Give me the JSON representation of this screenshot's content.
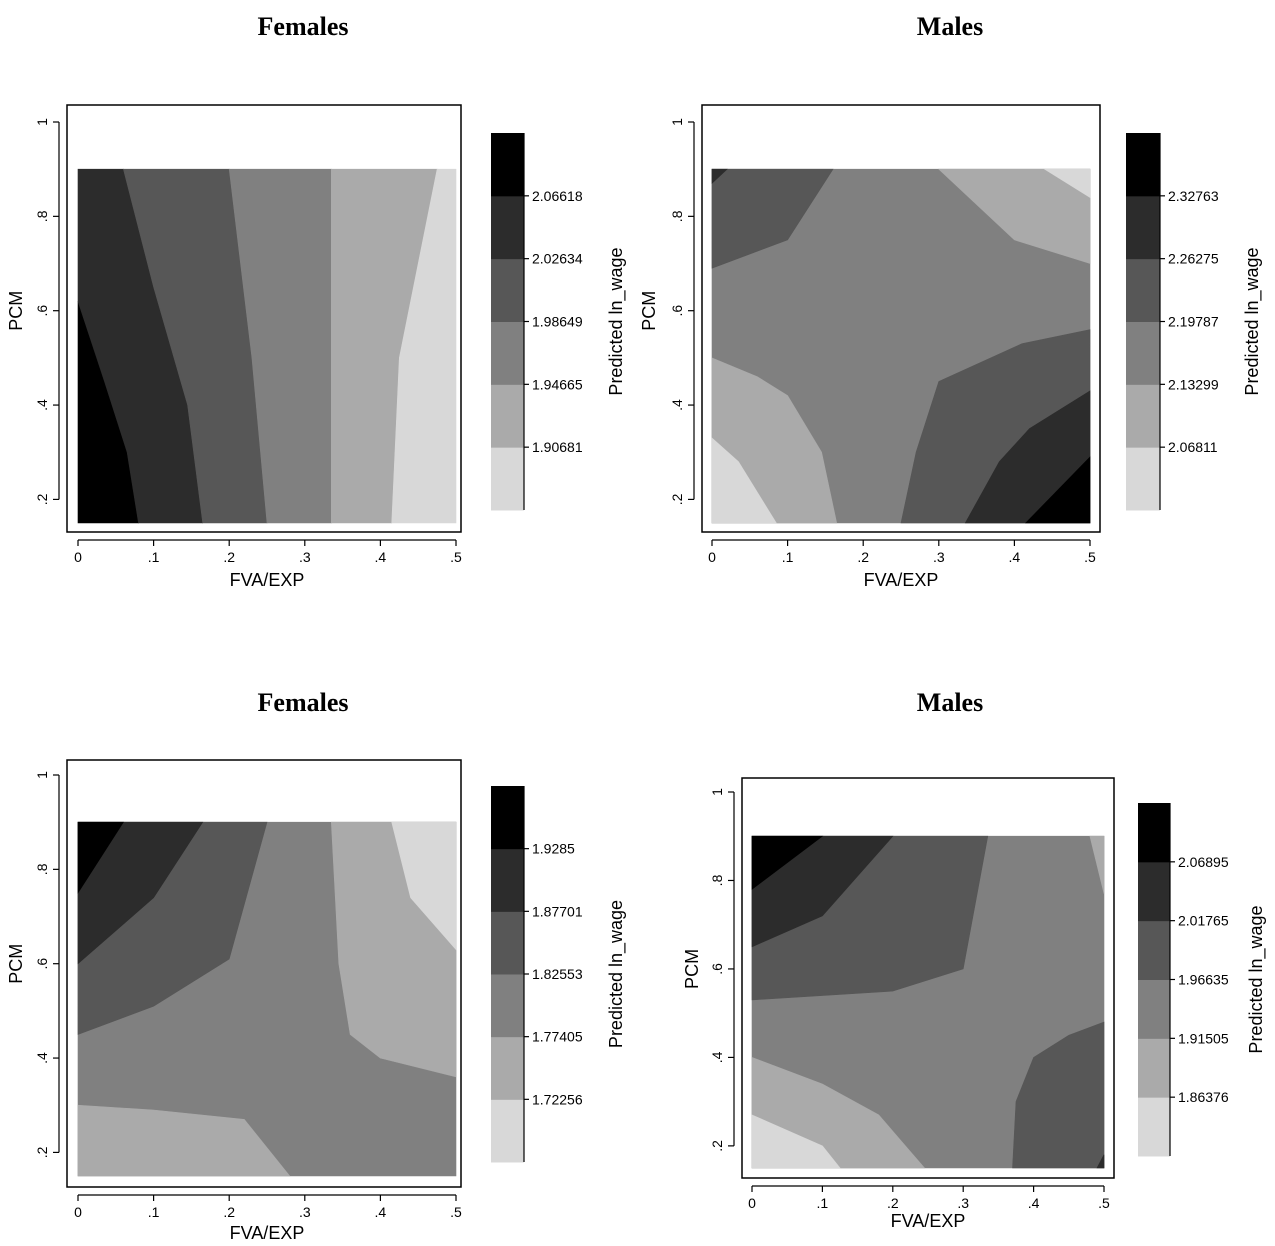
{
  "chart_data": [
    {
      "type": "contour",
      "title": "Females",
      "xlabel": "FVA/EXP",
      "ylabel": "PCM",
      "colorbar_label": "Predicted ln_wage",
      "xlim": [
        0,
        0.5
      ],
      "ylim": [
        0.15,
        1.0
      ],
      "data_extent": {
        "x": [
          0,
          0.5
        ],
        "y": [
          0.15,
          0.9
        ]
      },
      "x_ticks": [
        "0",
        ".1",
        ".2",
        ".3",
        ".4",
        ".5"
      ],
      "y_ticks": [
        ".2",
        ".4",
        ".6",
        ".8",
        "1"
      ],
      "levels": [
        1.90681,
        1.94665,
        1.98649,
        2.02634,
        2.06618
      ],
      "level_labels": [
        "1.90681",
        "1.94665",
        "1.98649",
        "2.02634",
        "2.06618"
      ],
      "colors": [
        "#d8d8d8",
        "#aaaaaa",
        "#808080",
        "#575757",
        "#2c2c2c",
        "#000000"
      ],
      "regions": [
        {
          "level": 5,
          "points": [
            [
              0,
              0.15
            ],
            [
              0.08,
              0.15
            ],
            [
              0.065,
              0.3
            ],
            [
              0.035,
              0.45
            ],
            [
              0,
              0.62
            ]
          ]
        },
        {
          "level": 4,
          "points": [
            [
              0.08,
              0.15
            ],
            [
              0.165,
              0.15
            ],
            [
              0.145,
              0.4
            ],
            [
              0.1,
              0.65
            ],
            [
              0.06,
              0.9
            ],
            [
              0,
              0.9
            ],
            [
              0,
              0.62
            ],
            [
              0.035,
              0.45
            ],
            [
              0.065,
              0.3
            ]
          ]
        },
        {
          "level": 3,
          "points": [
            [
              0.165,
              0.15
            ],
            [
              0.25,
              0.15
            ],
            [
              0.23,
              0.5
            ],
            [
              0.2,
              0.9
            ],
            [
              0.06,
              0.9
            ],
            [
              0.1,
              0.65
            ],
            [
              0.145,
              0.4
            ]
          ]
        },
        {
          "level": 2,
          "points": [
            [
              0.25,
              0.15
            ],
            [
              0.335,
              0.15
            ],
            [
              0.335,
              0.9
            ],
            [
              0.2,
              0.9
            ],
            [
              0.23,
              0.5
            ]
          ]
        },
        {
          "level": 1,
          "points": [
            [
              0.335,
              0.15
            ],
            [
              0.415,
              0.15
            ],
            [
              0.425,
              0.5
            ],
            [
              0.475,
              0.9
            ],
            [
              0.335,
              0.9
            ]
          ]
        },
        {
          "level": 0,
          "points": [
            [
              0.415,
              0.15
            ],
            [
              0.5,
              0.15
            ],
            [
              0.5,
              0.9
            ],
            [
              0.475,
              0.9
            ],
            [
              0.425,
              0.5
            ]
          ]
        }
      ]
    },
    {
      "type": "contour",
      "title": "Males",
      "xlabel": "FVA/EXP",
      "ylabel": "PCM",
      "colorbar_label": "Predicted ln_wage",
      "xlim": [
        0,
        0.5
      ],
      "ylim": [
        0.15,
        1.0
      ],
      "data_extent": {
        "x": [
          0,
          0.5
        ],
        "y": [
          0.15,
          0.9
        ]
      },
      "x_ticks": [
        "0",
        ".1",
        ".2",
        ".3",
        ".4",
        ".5"
      ],
      "y_ticks": [
        ".2",
        ".4",
        ".6",
        ".8",
        "1"
      ],
      "levels": [
        2.06811,
        2.13299,
        2.19787,
        2.26275,
        2.32763
      ],
      "level_labels": [
        "2.06811",
        "2.13299",
        "2.19787",
        "2.26275",
        "2.32763"
      ],
      "colors": [
        "#d8d8d8",
        "#aaaaaa",
        "#808080",
        "#575757",
        "#2c2c2c",
        "#000000"
      ],
      "regions": [
        {
          "level": 2,
          "points": [
            [
              0,
              0.15
            ],
            [
              0.5,
              0.15
            ],
            [
              0.5,
              0.9
            ],
            [
              0,
              0.9
            ]
          ]
        },
        {
          "level": 3,
          "points": [
            [
              0,
              0.69
            ],
            [
              0.1,
              0.75
            ],
            [
              0.16,
              0.9
            ],
            [
              0,
              0.9
            ]
          ]
        },
        {
          "level": 4,
          "points": [
            [
              0,
              0.87
            ],
            [
              0.02,
              0.9
            ],
            [
              0,
              0.9
            ]
          ]
        },
        {
          "level": 1,
          "points": [
            [
              0.3,
              0.9
            ],
            [
              0.5,
              0.9
            ],
            [
              0.5,
              0.7
            ],
            [
              0.4,
              0.75
            ]
          ]
        },
        {
          "level": 0,
          "points": [
            [
              0.44,
              0.9
            ],
            [
              0.5,
              0.9
            ],
            [
              0.5,
              0.84
            ]
          ]
        },
        {
          "level": 1,
          "points": [
            [
              0,
              0.15
            ],
            [
              0.165,
              0.15
            ],
            [
              0.145,
              0.3
            ],
            [
              0.1,
              0.42
            ],
            [
              0.06,
              0.46
            ],
            [
              0,
              0.5
            ]
          ]
        },
        {
          "level": 0,
          "points": [
            [
              0,
              0.15
            ],
            [
              0.085,
              0.15
            ],
            [
              0.035,
              0.28
            ],
            [
              0,
              0.33
            ]
          ]
        },
        {
          "level": 3,
          "points": [
            [
              0.25,
              0.15
            ],
            [
              0.5,
              0.15
            ],
            [
              0.5,
              0.56
            ],
            [
              0.41,
              0.53
            ],
            [
              0.3,
              0.45
            ],
            [
              0.27,
              0.3
            ]
          ]
        },
        {
          "level": 4,
          "points": [
            [
              0.335,
              0.15
            ],
            [
              0.5,
              0.15
            ],
            [
              0.5,
              0.43
            ],
            [
              0.42,
              0.35
            ],
            [
              0.38,
              0.28
            ]
          ]
        },
        {
          "level": 5,
          "points": [
            [
              0.415,
              0.15
            ],
            [
              0.5,
              0.15
            ],
            [
              0.5,
              0.29
            ]
          ]
        }
      ]
    },
    {
      "type": "contour",
      "title": "Females",
      "xlabel": "FVA/EXP",
      "ylabel": "PCM",
      "colorbar_label": "Predicted ln_wage",
      "xlim": [
        0,
        0.5
      ],
      "ylim": [
        0.15,
        1.0
      ],
      "data_extent": {
        "x": [
          0,
          0.5
        ],
        "y": [
          0.15,
          0.9
        ]
      },
      "x_ticks": [
        "0",
        ".1",
        ".2",
        ".3",
        ".4",
        ".5"
      ],
      "y_ticks": [
        ".2",
        ".4",
        ".6",
        ".8",
        "1"
      ],
      "levels": [
        1.72256,
        1.77405,
        1.82553,
        1.87701,
        1.9285
      ],
      "level_labels": [
        "1.72256",
        "1.77405",
        "1.82553",
        "1.87701",
        "1.9285"
      ],
      "colors": [
        "#d8d8d8",
        "#aaaaaa",
        "#808080",
        "#575757",
        "#2c2c2c",
        "#000000"
      ],
      "regions": [
        {
          "level": 2,
          "points": [
            [
              0,
              0.15
            ],
            [
              0.5,
              0.15
            ],
            [
              0.5,
              0.9
            ],
            [
              0,
              0.9
            ]
          ]
        },
        {
          "level": 1,
          "points": [
            [
              0,
              0.15
            ],
            [
              0.28,
              0.15
            ],
            [
              0.22,
              0.27
            ],
            [
              0.1,
              0.29
            ],
            [
              0,
              0.3
            ]
          ]
        },
        {
          "level": 1,
          "points": [
            [
              0.335,
              0.9
            ],
            [
              0.5,
              0.9
            ],
            [
              0.5,
              0.36
            ],
            [
              0.4,
              0.4
            ],
            [
              0.36,
              0.45
            ],
            [
              0.345,
              0.6
            ]
          ]
        },
        {
          "level": 0,
          "points": [
            [
              0.415,
              0.9
            ],
            [
              0.5,
              0.9
            ],
            [
              0.5,
              0.63
            ],
            [
              0.44,
              0.74
            ]
          ]
        },
        {
          "level": 3,
          "points": [
            [
              0,
              0.45
            ],
            [
              0.1,
              0.51
            ],
            [
              0.2,
              0.61
            ],
            [
              0.25,
              0.9
            ],
            [
              0,
              0.9
            ]
          ]
        },
        {
          "level": 4,
          "points": [
            [
              0,
              0.6
            ],
            [
              0.1,
              0.74
            ],
            [
              0.165,
              0.9
            ],
            [
              0,
              0.9
            ]
          ]
        },
        {
          "level": 5,
          "points": [
            [
              0,
              0.75
            ],
            [
              0.06,
              0.9
            ],
            [
              0,
              0.9
            ]
          ]
        }
      ]
    },
    {
      "type": "contour",
      "title": "Males",
      "xlabel": "FVA/EXP",
      "ylabel": "PCM",
      "colorbar_label": "Predicted ln_wage",
      "xlim": [
        0,
        0.5
      ],
      "ylim": [
        0.15,
        1.0
      ],
      "data_extent": {
        "x": [
          0,
          0.5
        ],
        "y": [
          0.15,
          0.9
        ]
      },
      "x_ticks": [
        "0",
        ".1",
        ".2",
        ".3",
        ".4",
        ".5"
      ],
      "y_ticks": [
        ".2",
        ".4",
        ".6",
        ".8",
        "1"
      ],
      "levels": [
        1.86376,
        1.91505,
        1.96635,
        2.01765,
        2.06895
      ],
      "level_labels": [
        "1.86376",
        "1.91505",
        "1.96635",
        "2.01765",
        "2.06895"
      ],
      "colors": [
        "#d8d8d8",
        "#aaaaaa",
        "#808080",
        "#575757",
        "#2c2c2c",
        "#000000"
      ],
      "regions": [
        {
          "level": 2,
          "points": [
            [
              0,
              0.15
            ],
            [
              0.5,
              0.15
            ],
            [
              0.5,
              0.9
            ],
            [
              0,
              0.9
            ]
          ]
        },
        {
          "level": 1,
          "points": [
            [
              0,
              0.15
            ],
            [
              0.245,
              0.15
            ],
            [
              0.18,
              0.27
            ],
            [
              0.1,
              0.34
            ],
            [
              0,
              0.4
            ]
          ]
        },
        {
          "level": 0,
          "points": [
            [
              0,
              0.15
            ],
            [
              0.125,
              0.15
            ],
            [
              0.1,
              0.2
            ],
            [
              0,
              0.27
            ]
          ]
        },
        {
          "level": 1,
          "points": [
            [
              0.48,
              0.9
            ],
            [
              0.5,
              0.9
            ],
            [
              0.5,
              0.77
            ]
          ]
        },
        {
          "level": 3,
          "points": [
            [
              0,
              0.53
            ],
            [
              0.2,
              0.55
            ],
            [
              0.3,
              0.6
            ],
            [
              0.335,
              0.9
            ],
            [
              0,
              0.9
            ]
          ]
        },
        {
          "level": 4,
          "points": [
            [
              0,
              0.65
            ],
            [
              0.1,
              0.72
            ],
            [
              0.2,
              0.9
            ],
            [
              0,
              0.9
            ]
          ]
        },
        {
          "level": 5,
          "points": [
            [
              0,
              0.78
            ],
            [
              0.1,
              0.9
            ],
            [
              0,
              0.9
            ]
          ]
        },
        {
          "level": 3,
          "points": [
            [
              0.37,
              0.15
            ],
            [
              0.5,
              0.15
            ],
            [
              0.5,
              0.48
            ],
            [
              0.45,
              0.45
            ],
            [
              0.4,
              0.4
            ],
            [
              0.375,
              0.3
            ]
          ]
        },
        {
          "level": 4,
          "points": [
            [
              0.49,
              0.15
            ],
            [
              0.5,
              0.15
            ],
            [
              0.5,
              0.18
            ]
          ]
        }
      ]
    }
  ]
}
